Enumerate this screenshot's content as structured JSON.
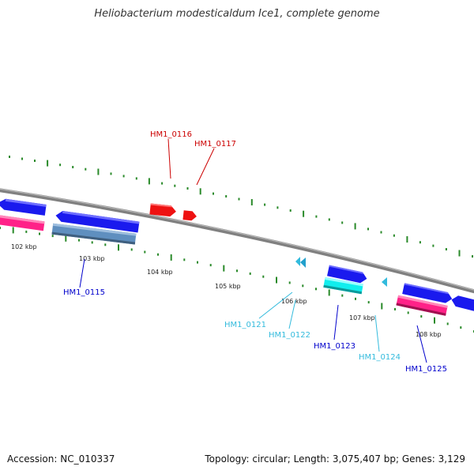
{
  "title": "Heliobacterium modesticaldum Ice1, complete genome",
  "footer": {
    "accession": "Accession: NC_010337",
    "summary": "Topology: circular; Length: 3,075,407 bp; Genes: 3,129"
  },
  "kbp_labels": [
    "102 kbp",
    "103 kbp",
    "104 kbp",
    "105 kbp",
    "106 kbp",
    "107 kbp",
    "108 kbp"
  ],
  "gene_labels": [
    {
      "name": "HM1_0115",
      "color": "#0000cc"
    },
    {
      "name": "HM1_0116",
      "color": "#cc0000"
    },
    {
      "name": "HM1_0117",
      "color": "#cc0000"
    },
    {
      "name": "HM1_0121",
      "color": "#33bbdd"
    },
    {
      "name": "HM1_0122",
      "color": "#33bbdd"
    },
    {
      "name": "HM1_0123",
      "color": "#0000cc"
    },
    {
      "name": "HM1_0124",
      "color": "#33bbdd"
    },
    {
      "name": "HM1_0125",
      "color": "#0000cc"
    }
  ],
  "colors": {
    "backbone": "#808080",
    "tick_marks": "#2a8a2a",
    "blue_gene": "#1a1aee",
    "red_gene": "#ee1111",
    "cyan_gene": "#11eeee",
    "pink_gene": "#ff2288",
    "steel_gene": "#5f8fbf"
  }
}
